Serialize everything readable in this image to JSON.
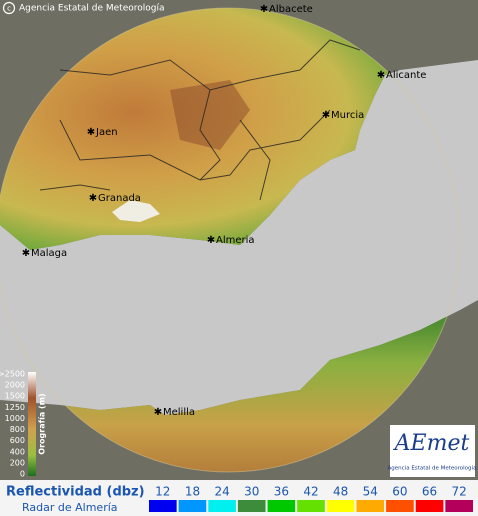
{
  "header": {
    "copyright": "Agencia Estatal de Meteorología"
  },
  "cities": [
    {
      "label": "Albacete"
    },
    {
      "label": "Alicante"
    },
    {
      "label": "Murcia"
    },
    {
      "label": "Jaen"
    },
    {
      "label": "Granada"
    },
    {
      "label": "Almeria"
    },
    {
      "label": "Malaga"
    },
    {
      "label": "Melilla"
    }
  ],
  "orography_legend": {
    "title": "Orografía (m)",
    "ticks": [
      ">2500",
      2000,
      1500,
      1250,
      1000,
      800,
      600,
      400,
      200,
      0
    ]
  },
  "reflectivity_legend": {
    "title": "Reflectividad (dbz)",
    "subtitle": "Radar de Almería",
    "levels": [
      {
        "value": 12,
        "color": "#0000f0"
      },
      {
        "value": 18,
        "color": "#0096ff"
      },
      {
        "value": 24,
        "color": "#00f0f0"
      },
      {
        "value": 30,
        "color": "#3c8c3c"
      },
      {
        "value": 36,
        "color": "#00c800"
      },
      {
        "value": 42,
        "color": "#64e100"
      },
      {
        "value": 48,
        "color": "#ffff00"
      },
      {
        "value": 54,
        "color": "#ffaa00"
      },
      {
        "value": 60,
        "color": "#ff5000"
      },
      {
        "value": 66,
        "color": "#ff0000"
      },
      {
        "value": 72,
        "color": "#b4005a"
      }
    ]
  },
  "logo": {
    "name": "AEmet",
    "caption": "Agencia Estatal de Meteorología"
  }
}
